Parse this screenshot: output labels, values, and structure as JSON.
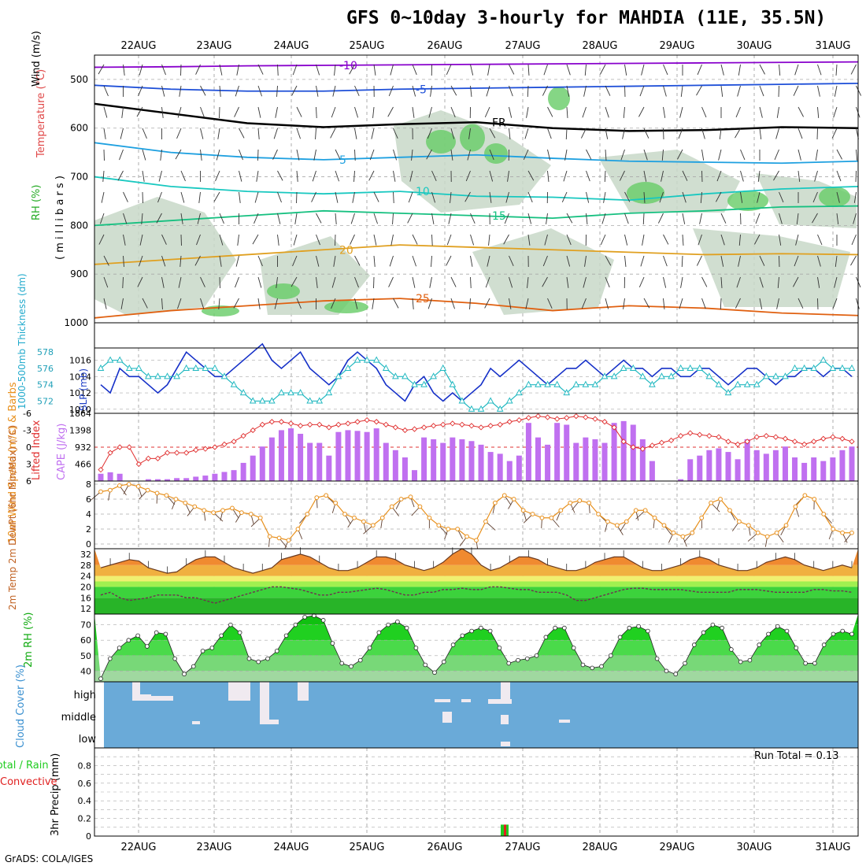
{
  "title": "GFS 0~10day 3-hourly for MAHDIA (11E, 35.5N)",
  "credit": "GrADS: COLA/IGES",
  "run_total": "Run Total = 0.13",
  "x_axis": {
    "dates": [
      "22AUG",
      "23AUG",
      "24AUG",
      "25AUG",
      "26AUG",
      "27AUG",
      "28AUG",
      "29AUG",
      "30AUG",
      "31AUG"
    ]
  },
  "colors": {
    "rh_fill": "#c8d8c8",
    "rh_high": "#66cc66",
    "temp_minus10": "#8800cc",
    "temp_minus5": "#1e4fd8",
    "freezing": "#000000",
    "temp_5": "#1ea0e0",
    "temp_10": "#18c8c0",
    "temp_15": "#16c080",
    "temp_20": "#e0a020",
    "temp_25": "#e06010",
    "slp": "#1530c8",
    "thickness": "#20b8c0",
    "lifted": "#e03030",
    "cape": "#c070f0",
    "wind10": "#e8901c",
    "barb": "#604030",
    "temp2m": "#e05a00",
    "dewpt": "#703050",
    "rh2m": "#10cc10",
    "cloud": "#6aaad8",
    "cloud_gap": "#f0eaf0",
    "precip_total": "#20cc20",
    "precip_conv": "#e02020"
  },
  "chart_data": [
    {
      "type": "area",
      "panel": "upper_air",
      "ylabel_parts": [
        "RH (%)",
        "Temperature (°C)",
        "Wind (m/s)"
      ],
      "ylabel_units": "( m i l l i b a r s )",
      "y_ticks": [
        "500",
        "600",
        "700",
        "800",
        "900",
        "1000"
      ],
      "ylim": [
        1000,
        450
      ],
      "contours": [
        {
          "label": "-10",
          "level_mb": [
            475,
            474,
            472,
            471,
            470,
            469,
            468,
            467,
            466,
            465,
            464
          ]
        },
        {
          "label": "-5",
          "level_mb": [
            512,
            520,
            524,
            524,
            520,
            518,
            516,
            514,
            512,
            510,
            508
          ]
        },
        {
          "label": "FR",
          "level_mb": [
            550,
            570,
            590,
            598,
            592,
            588,
            600,
            606,
            604,
            598,
            600
          ]
        },
        {
          "label": "5",
          "level_mb": [
            630,
            650,
            660,
            665,
            660,
            655,
            662,
            668,
            670,
            672,
            668
          ]
        },
        {
          "label": "10",
          "level_mb": [
            700,
            720,
            730,
            735,
            730,
            740,
            742,
            748,
            735,
            725,
            720
          ]
        },
        {
          "label": "15",
          "level_mb": [
            800,
            790,
            780,
            770,
            775,
            780,
            785,
            775,
            770,
            762,
            760
          ]
        },
        {
          "label": "20",
          "level_mb": [
            880,
            870,
            860,
            850,
            840,
            845,
            850,
            855,
            860,
            858,
            860
          ]
        },
        {
          "label": "25",
          "level_mb": [
            990,
            975,
            965,
            955,
            950,
            960,
            975,
            965,
            970,
            980,
            985
          ]
        }
      ],
      "dates": [
        "22AUG",
        "23AUG",
        "24AUG",
        "25AUG",
        "26AUG",
        "27AUG",
        "28AUG",
        "29AUG",
        "30AUG",
        "31AUG"
      ]
    },
    {
      "type": "line",
      "panel": "slp_thickness",
      "ylabel_left": "1000-500mb Thickness (dm)",
      "ylabel_right": "SLP (mb)",
      "thickness_ticks": [
        "578",
        "576",
        "574",
        "572"
      ],
      "slp_ticks": [
        "1016",
        "1014",
        "1012",
        "1010"
      ],
      "series": [
        {
          "name": "SLP (mb)",
          "values": [
            1013,
            1012,
            1015,
            1014,
            1014,
            1013,
            1012,
            1013,
            1015,
            1017,
            1016,
            1015,
            1014,
            1014,
            1015,
            1016,
            1017,
            1018,
            1016,
            1015,
            1016,
            1017,
            1015,
            1014,
            1013,
            1014,
            1016,
            1017,
            1016,
            1015,
            1013,
            1012,
            1011,
            1013,
            1014,
            1012,
            1011,
            1012,
            1011,
            1012,
            1013,
            1015,
            1014,
            1015,
            1016,
            1015,
            1014,
            1013,
            1014,
            1015,
            1015,
            1016,
            1015,
            1014,
            1015,
            1016,
            1015,
            1015,
            1014,
            1015,
            1015,
            1014,
            1014,
            1015,
            1015,
            1014,
            1013,
            1014,
            1015,
            1015,
            1014,
            1013,
            1014,
            1014,
            1015,
            1015,
            1014,
            1015,
            1015,
            1014
          ]
        },
        {
          "name": "1000-500mb Thickness (dm)",
          "values": [
            576,
            577,
            577,
            576,
            576,
            575,
            575,
            575,
            575,
            576,
            576,
            576,
            576,
            575,
            574,
            573,
            572,
            572,
            572,
            573,
            573,
            573,
            572,
            572,
            573,
            575,
            576,
            577,
            577,
            577,
            576,
            575,
            575,
            574,
            574,
            575,
            576,
            574,
            572,
            571,
            571,
            572,
            571,
            572,
            573,
            574,
            574,
            574,
            574,
            573,
            574,
            574,
            574,
            575,
            575,
            576,
            576,
            575,
            574,
            575,
            575,
            576,
            576,
            576,
            575,
            574,
            573,
            574,
            574,
            574,
            575,
            575,
            575,
            576,
            576,
            576,
            577,
            576,
            576,
            576
          ]
        }
      ]
    },
    {
      "type": "bar",
      "panel": "cape_li",
      "ylabel_left": "Lifted Index",
      "ylabel_right": "CAPE (J/kg)",
      "li_ticks": [
        "-6",
        "-3",
        "0",
        "3",
        "6"
      ],
      "cape_ticks": [
        "1864",
        "1398",
        "932",
        "466"
      ],
      "series": [
        {
          "name": "CAPE (J/kg)",
          "values": [
            200,
            240,
            200,
            0,
            0,
            50,
            50,
            50,
            80,
            80,
            120,
            150,
            200,
            250,
            300,
            500,
            700,
            950,
            1200,
            1400,
            1450,
            1300,
            1050,
            1050,
            700,
            1350,
            1400,
            1380,
            1350,
            1450,
            1050,
            850,
            650,
            300,
            1200,
            1150,
            1050,
            1200,
            1150,
            1100,
            1000,
            800,
            750,
            550,
            700,
            1600,
            1200,
            1000,
            1600,
            1550,
            1050,
            1200,
            1150,
            1050,
            1600,
            1650,
            1550,
            1150,
            550,
            0,
            0,
            50,
            600,
            700,
            850,
            900,
            800,
            600,
            1150,
            850,
            750,
            850,
            950,
            650,
            500,
            650,
            550,
            650,
            850,
            950
          ]
        },
        {
          "name": "Lifted Index",
          "values": [
            4,
            1,
            0,
            0,
            3,
            2,
            2,
            1,
            1,
            1,
            0.5,
            0.3,
            0,
            -0.5,
            -1,
            -2,
            -3,
            -4,
            -4.5,
            -4.5,
            -4.2,
            -3.8,
            -4,
            -4,
            -3.5,
            -4,
            -4.2,
            -4.5,
            -4.8,
            -4.5,
            -4,
            -3.5,
            -3,
            -3.2,
            -3.5,
            -3.8,
            -4,
            -4.2,
            -4,
            -3.8,
            -3.5,
            -3.8,
            -4,
            -4.5,
            -4.8,
            -5.2,
            -5.5,
            -5.3,
            -5,
            -5.2,
            -5.5,
            -5.3,
            -5,
            -4.5,
            -3.5,
            -1,
            0,
            0.3,
            -0.3,
            -0.8,
            -1.2,
            -2,
            -2.5,
            -2.2,
            -2,
            -1.8,
            -1,
            -0.5,
            -1,
            -1.8,
            -2,
            -1.8,
            -1.5,
            -1,
            -0.5,
            -1,
            -1.5,
            -1.8,
            -1.5,
            -1
          ]
        }
      ]
    },
    {
      "type": "line",
      "panel": "wind10m",
      "ylabel": "10m Wind Speed (m/s) & Barbs",
      "y_ticks": [
        "8",
        "6",
        "4",
        "2",
        "0"
      ],
      "ylim": [
        0,
        8
      ],
      "series": [
        {
          "name": "10m Wind Speed",
          "values": [
            7,
            7.2,
            7.8,
            8,
            7.7,
            7.2,
            6.8,
            6.5,
            6,
            5.5,
            5,
            4.5,
            4.2,
            4.5,
            4.8,
            4.2,
            4,
            3.5,
            1,
            0.8,
            0.5,
            2,
            4,
            6.2,
            6.5,
            5.5,
            4,
            3.5,
            3,
            2.5,
            3.5,
            5,
            6,
            6.3,
            5,
            3.5,
            2.5,
            2,
            2,
            1,
            0.5,
            3,
            5.5,
            6.5,
            6,
            4.5,
            4,
            3.5,
            3.5,
            4.5,
            5.5,
            5.8,
            5.5,
            4,
            3,
            2.5,
            3,
            4.5,
            4.5,
            3.5,
            2.5,
            1.5,
            1,
            1.5,
            3.5,
            5.5,
            6,
            4.5,
            3,
            2.5,
            1.5,
            1,
            1.5,
            2.5,
            5,
            6.5,
            6,
            4,
            2,
            1.5,
            1.5
          ]
        }
      ]
    },
    {
      "type": "area",
      "panel": "temp2m",
      "ylabel": "2m Temp 2m DewPt (6hr Min/Max) (°C)",
      "y_ticks": [
        "32",
        "28",
        "24",
        "20",
        "16",
        "12"
      ],
      "ylim": [
        10,
        34
      ],
      "series": [
        {
          "name": "2m Temp",
          "values": [
            27,
            28,
            29,
            30,
            29.5,
            27,
            26,
            25,
            25.5,
            28,
            30,
            31,
            31,
            29,
            27,
            26,
            25,
            26,
            27,
            30,
            31,
            32,
            31,
            29,
            27,
            26,
            26,
            27,
            29,
            31,
            31,
            30,
            28,
            27,
            26,
            27,
            29,
            32,
            34,
            32,
            28,
            26,
            27,
            29,
            31,
            31,
            30,
            28,
            27,
            26,
            26,
            27,
            29,
            30,
            31,
            31,
            29,
            27,
            26,
            26,
            27,
            28,
            30,
            31,
            30,
            28,
            27,
            26,
            26,
            27,
            29,
            30,
            31,
            30,
            28,
            27,
            26,
            27,
            28,
            27
          ]
        },
        {
          "name": "2m DewPt",
          "values": [
            17,
            18,
            16,
            15,
            15.5,
            16,
            17,
            17,
            17,
            16,
            16,
            15,
            14,
            15,
            16,
            17,
            18,
            19,
            20,
            20,
            19.5,
            19,
            18,
            17,
            17,
            18,
            18,
            18.5,
            19,
            19.5,
            19,
            18,
            17,
            17,
            18,
            18,
            19,
            19,
            19.5,
            19,
            19,
            20,
            20,
            19.5,
            19,
            19,
            18,
            18,
            18,
            17,
            15,
            15,
            16,
            17,
            18,
            19,
            19.5,
            19.5,
            19,
            19,
            19,
            19,
            18.5,
            18,
            18,
            18,
            18,
            19,
            19,
            19,
            18.5,
            18,
            18,
            18,
            18,
            19,
            19,
            18.5,
            18.5,
            18
          ]
        }
      ]
    },
    {
      "type": "area",
      "panel": "rh2m",
      "ylabel": "2m RH (%)",
      "y_ticks": [
        "70",
        "60",
        "50",
        "40"
      ],
      "ylim": [
        33,
        77
      ],
      "series": [
        {
          "name": "2m RH",
          "values": [
            35,
            48,
            55,
            60,
            63,
            56,
            65,
            64,
            48,
            38,
            43,
            53,
            55,
            63,
            70,
            65,
            48,
            46,
            48,
            53,
            63,
            70,
            75,
            76,
            73,
            58,
            45,
            43,
            47,
            55,
            65,
            70,
            72,
            68,
            55,
            44,
            39,
            46,
            57,
            63,
            66,
            68,
            66,
            55,
            45,
            47,
            48,
            50,
            62,
            68,
            68,
            55,
            44,
            42,
            43,
            50,
            62,
            68,
            69,
            66,
            48,
            40,
            38,
            45,
            57,
            65,
            70,
            68,
            54,
            46,
            47,
            57,
            64,
            69,
            66,
            55,
            45,
            45,
            57,
            64,
            66,
            64
          ]
        }
      ]
    },
    {
      "type": "heatmap",
      "panel": "cloud",
      "ylabel": "Cloud Cover (%)",
      "levels": [
        "high",
        "middle",
        "low"
      ]
    },
    {
      "type": "bar",
      "panel": "precip",
      "ylabel": "3hr Precip (mm)",
      "legend_total": "Total / Rain",
      "legend_conv": "Convective",
      "y_ticks": [
        "0.8",
        "0.6",
        "0.4",
        "0.2",
        "0"
      ],
      "extra_ticks": [
        "0.9",
        "0.7",
        "0.5",
        "0.3",
        "0.1"
      ],
      "ylim": [
        0,
        1
      ],
      "series": [
        {
          "name": "Total / Rain",
          "values": [
            0.13
          ]
        },
        {
          "name": "Convective",
          "values": [
            0.13
          ]
        }
      ]
    }
  ]
}
